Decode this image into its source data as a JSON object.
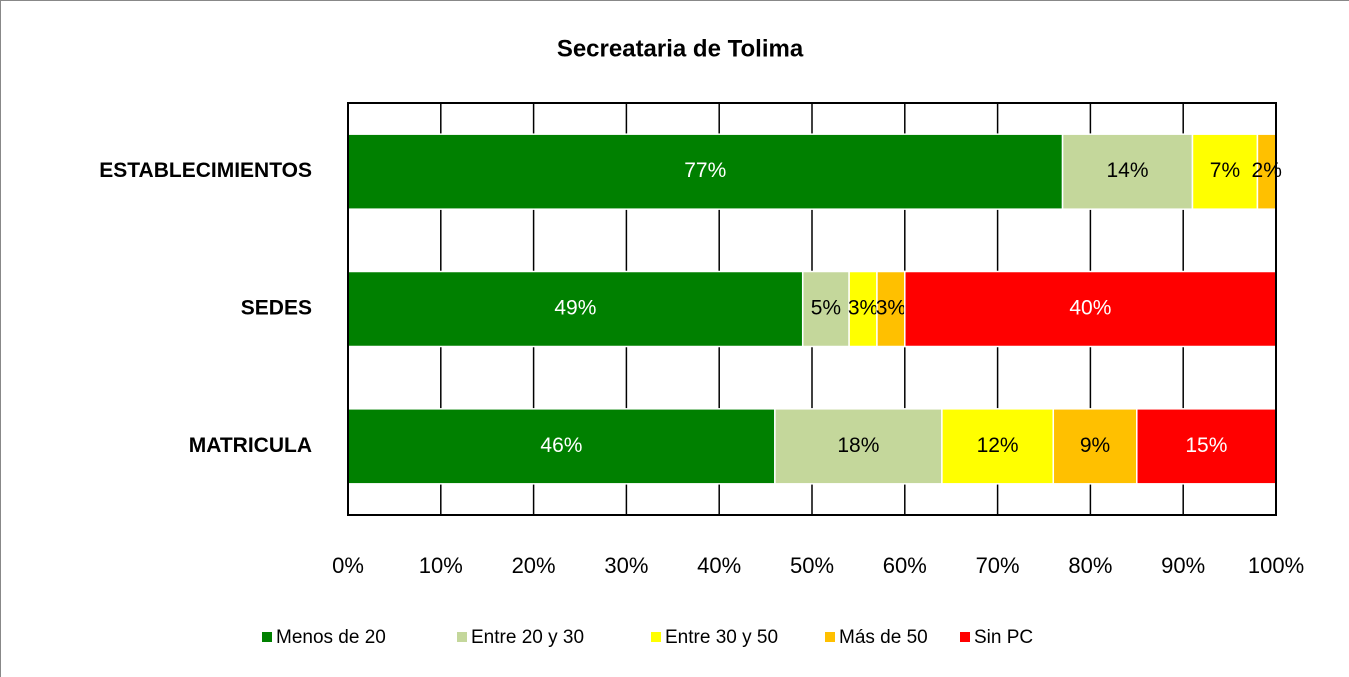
{
  "chart_data": {
    "type": "stacked-bar-horizontal",
    "title": "Secreataria  de Tolima",
    "categories": [
      "ESTABLECIMIENTOS",
      "SEDES",
      "MATRICULA"
    ],
    "series": [
      {
        "name": "Menos de 20",
        "color": "#008000",
        "values": [
          77,
          49,
          46
        ],
        "value_labels": [
          "77%",
          "49%",
          "46%"
        ]
      },
      {
        "name": "Entre 20 y 30",
        "color": "#c4d79b",
        "values": [
          14,
          5,
          18
        ],
        "value_labels": [
          "14%",
          "5%",
          "18%"
        ]
      },
      {
        "name": "Entre 30 y 50",
        "color": "#ffff00",
        "values": [
          7,
          3,
          12
        ],
        "value_labels": [
          "7%",
          "3%",
          "12%"
        ]
      },
      {
        "name": "Más de 50",
        "color": "#ffc000",
        "values": [
          2,
          3,
          9
        ],
        "value_labels": [
          "2%",
          "3%",
          "9%"
        ]
      },
      {
        "name": "Sin PC",
        "color": "#ff0000",
        "values": [
          null,
          40,
          15
        ],
        "value_labels": [
          null,
          "40%",
          "15%"
        ]
      }
    ],
    "xlim": [
      0,
      100
    ],
    "xticks": [
      {
        "value": 0,
        "label": "0%"
      },
      {
        "value": 10,
        "label": "10%"
      },
      {
        "value": 20,
        "label": "20%"
      },
      {
        "value": 30,
        "label": "30%"
      },
      {
        "value": 40,
        "label": "40%"
      },
      {
        "value": 50,
        "label": "50%"
      },
      {
        "value": 60,
        "label": "60%"
      },
      {
        "value": 70,
        "label": "70%"
      },
      {
        "value": 80,
        "label": "80%"
      },
      {
        "value": 90,
        "label": "90%"
      },
      {
        "value": 100,
        "label": "100%"
      }
    ],
    "grid": true,
    "legend": "bottom"
  }
}
